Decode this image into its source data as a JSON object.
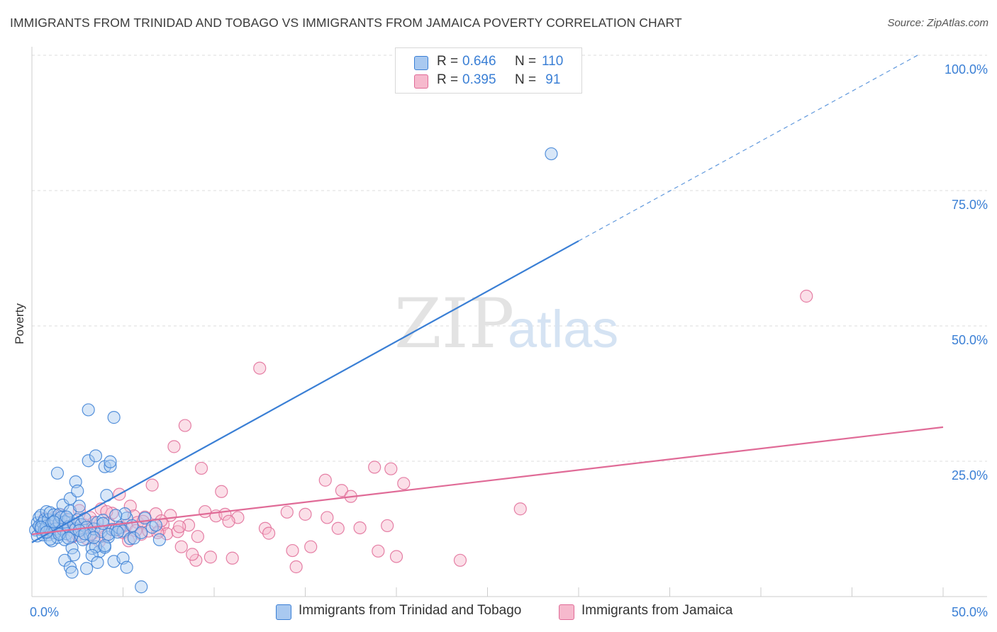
{
  "title": "IMMIGRANTS FROM TRINIDAD AND TOBAGO VS IMMIGRANTS FROM JAMAICA POVERTY CORRELATION CHART",
  "source": "Source: ZipAtlas.com",
  "watermark": {
    "zip": "ZIP",
    "atlas": "atlas"
  },
  "colors": {
    "blue": "#3a7fd5",
    "blue_fill": "#a9c9f0",
    "pink": "#e06b97",
    "pink_fill": "#f6b9cd",
    "grid": "#dddddd",
    "axis_text": "#3a7fd5"
  },
  "legend": {
    "blue": {
      "r_label": "R = ",
      "r_value": "0.646",
      "n_label": "N = ",
      "n_value": "110"
    },
    "pink": {
      "r_label": "R = ",
      "r_value": "0.395",
      "n_label": "N = ",
      "n_value": " 91"
    }
  },
  "bottom_legend": {
    "blue_label": "Immigrants from Trinidad and Tobago",
    "pink_label": "Immigrants from Jamaica"
  },
  "chart_data": {
    "type": "scatter",
    "title": "IMMIGRANTS FROM TRINIDAD AND TOBAGO VS IMMIGRANTS FROM JAMAICA POVERTY CORRELATION CHART",
    "xlabel": "",
    "ylabel": "Poverty",
    "xlim": [
      0,
      50
    ],
    "ylim": [
      0,
      100
    ],
    "x_tick_labels": [
      "0.0%",
      "50.0%"
    ],
    "y_ticks": [
      25,
      50,
      75,
      100
    ],
    "y_tick_labels": [
      "25.0%",
      "50.0%",
      "75.0%",
      "100.0%"
    ],
    "grid": true,
    "series": [
      {
        "name": "Immigrants from Trinidad and Tobago",
        "color": "blue",
        "R": 0.646,
        "N": 110,
        "trend": {
          "x0": 0,
          "y0": 10.0,
          "x1": 30,
          "y1": 65.7,
          "dashed_to_x": 48.6,
          "dashed_to_y": 100
        },
        "points": [
          [
            0.2,
            12.3
          ],
          [
            0.3,
            13.6
          ],
          [
            0.3,
            11.2
          ],
          [
            0.4,
            14.6
          ],
          [
            0.4,
            13.0
          ],
          [
            0.5,
            12.4
          ],
          [
            0.5,
            15.0
          ],
          [
            0.6,
            11.4
          ],
          [
            0.6,
            13.6
          ],
          [
            0.7,
            14.2
          ],
          [
            0.7,
            12.4
          ],
          [
            0.8,
            15.7
          ],
          [
            0.8,
            13.0
          ],
          [
            0.9,
            11.4
          ],
          [
            0.9,
            14.2
          ],
          [
            1.0,
            15.5
          ],
          [
            1.0,
            12.3
          ],
          [
            1.1,
            10.3
          ],
          [
            1.1,
            13.6
          ],
          [
            1.2,
            15.1
          ],
          [
            1.2,
            11.8
          ],
          [
            1.3,
            14.1
          ],
          [
            1.3,
            12.5
          ],
          [
            1.4,
            22.8
          ],
          [
            1.4,
            10.9
          ],
          [
            1.5,
            13.7
          ],
          [
            1.5,
            15.2
          ],
          [
            1.6,
            14.6
          ],
          [
            1.6,
            11.7
          ],
          [
            1.7,
            12.4
          ],
          [
            1.7,
            16.9
          ],
          [
            1.8,
            13.8
          ],
          [
            1.8,
            10.5
          ],
          [
            1.9,
            11.6
          ],
          [
            2.0,
            14.3
          ],
          [
            2.0,
            12.9
          ],
          [
            2.1,
            15.8
          ],
          [
            2.1,
            18.1
          ],
          [
            2.2,
            11.2
          ],
          [
            2.2,
            9.0
          ],
          [
            2.3,
            7.7
          ],
          [
            2.3,
            13.4
          ],
          [
            2.4,
            21.2
          ],
          [
            2.4,
            12.5
          ],
          [
            2.5,
            19.5
          ],
          [
            2.5,
            14.2
          ],
          [
            2.6,
            16.7
          ],
          [
            2.7,
            13.3
          ],
          [
            2.7,
            11.1
          ],
          [
            2.8,
            10.5
          ],
          [
            2.9,
            14.4
          ],
          [
            3.0,
            12.8
          ],
          [
            3.1,
            34.5
          ],
          [
            3.1,
            25.1
          ],
          [
            3.2,
            11.4
          ],
          [
            3.3,
            8.9
          ],
          [
            3.4,
            12.5
          ],
          [
            3.5,
            26.0
          ],
          [
            3.6,
            13.7
          ],
          [
            3.7,
            8.3
          ],
          [
            3.8,
            12.0
          ],
          [
            3.9,
            14.1
          ],
          [
            4.0,
            24.0
          ],
          [
            4.0,
            9.1
          ],
          [
            4.1,
            18.7
          ],
          [
            4.2,
            11.0
          ],
          [
            4.3,
            24.1
          ],
          [
            4.3,
            24.9
          ],
          [
            4.4,
            12.4
          ],
          [
            4.5,
            33.1
          ],
          [
            4.6,
            12.3
          ],
          [
            4.8,
            12.7
          ],
          [
            5.0,
            12.1
          ],
          [
            5.2,
            14.5
          ],
          [
            5.4,
            10.7
          ],
          [
            5.6,
            10.8
          ],
          [
            6.0,
            11.8
          ],
          [
            6.2,
            14.5
          ],
          [
            6.6,
            12.8
          ],
          [
            6.8,
            13.2
          ],
          [
            7.0,
            10.5
          ],
          [
            0.5,
            12.8
          ],
          [
            1.0,
            10.6
          ],
          [
            1.5,
            11.5
          ],
          [
            2.0,
            10.8
          ],
          [
            3.5,
            9.2
          ],
          [
            4.0,
            9.4
          ],
          [
            4.2,
            11.5
          ],
          [
            1.8,
            6.7
          ],
          [
            2.1,
            5.4
          ],
          [
            2.2,
            4.5
          ],
          [
            3.0,
            5.2
          ],
          [
            3.3,
            7.6
          ],
          [
            3.6,
            6.3
          ],
          [
            4.5,
            6.5
          ],
          [
            5.0,
            7.1
          ],
          [
            5.5,
            13.1
          ],
          [
            6.0,
            1.8
          ],
          [
            5.2,
            5.4
          ],
          [
            28.5,
            81.8
          ],
          [
            1.2,
            13.8
          ],
          [
            2.6,
            12.2
          ],
          [
            3.9,
            13.5
          ],
          [
            4.7,
            11.9
          ],
          [
            5.1,
            15.3
          ],
          [
            0.8,
            11.9
          ],
          [
            1.9,
            14.7
          ],
          [
            2.9,
            11.6
          ],
          [
            3.4,
            10.9
          ],
          [
            4.6,
            15.0
          ]
        ]
      },
      {
        "name": "Immigrants from Jamaica",
        "color": "pink",
        "R": 0.395,
        "N": 91,
        "trend": {
          "x0": 0,
          "y0": 11.5,
          "x1": 50,
          "y1": 31.3
        },
        "points": [
          [
            0.5,
            12.5
          ],
          [
            0.8,
            13.8
          ],
          [
            1.0,
            11.8
          ],
          [
            1.2,
            14.6
          ],
          [
            1.4,
            13.1
          ],
          [
            1.6,
            15.1
          ],
          [
            1.8,
            12.3
          ],
          [
            2.0,
            14.1
          ],
          [
            2.2,
            11.0
          ],
          [
            2.4,
            13.4
          ],
          [
            2.6,
            15.9
          ],
          [
            2.8,
            12.6
          ],
          [
            3.0,
            10.7
          ],
          [
            3.2,
            14.6
          ],
          [
            3.4,
            13.7
          ],
          [
            3.6,
            12.5
          ],
          [
            3.8,
            16.2
          ],
          [
            4.0,
            11.1
          ],
          [
            4.2,
            13.6
          ],
          [
            4.4,
            15.4
          ],
          [
            4.6,
            12.3
          ],
          [
            4.8,
            18.9
          ],
          [
            5.0,
            11.8
          ],
          [
            5.2,
            13.2
          ],
          [
            5.4,
            16.7
          ],
          [
            5.6,
            14.9
          ],
          [
            5.8,
            13.7
          ],
          [
            6.0,
            11.5
          ],
          [
            6.2,
            14.7
          ],
          [
            6.4,
            12.1
          ],
          [
            6.6,
            20.6
          ],
          [
            6.8,
            15.3
          ],
          [
            7.0,
            12.2
          ],
          [
            7.2,
            13.3
          ],
          [
            7.4,
            11.6
          ],
          [
            7.6,
            15.0
          ],
          [
            7.8,
            27.7
          ],
          [
            8.0,
            12.0
          ],
          [
            8.2,
            9.2
          ],
          [
            8.4,
            31.6
          ],
          [
            8.6,
            13.2
          ],
          [
            9.0,
            6.7
          ],
          [
            9.3,
            23.7
          ],
          [
            9.5,
            15.7
          ],
          [
            9.8,
            7.3
          ],
          [
            10.1,
            14.9
          ],
          [
            10.4,
            19.4
          ],
          [
            10.6,
            15.2
          ],
          [
            11.0,
            7.1
          ],
          [
            11.3,
            14.6
          ],
          [
            12.5,
            42.2
          ],
          [
            12.8,
            12.6
          ],
          [
            13.0,
            11.7
          ],
          [
            14.0,
            15.6
          ],
          [
            14.3,
            8.5
          ],
          [
            14.5,
            5.5
          ],
          [
            15.0,
            15.2
          ],
          [
            15.3,
            9.2
          ],
          [
            16.1,
            21.5
          ],
          [
            16.2,
            14.6
          ],
          [
            16.8,
            12.6
          ],
          [
            17.0,
            19.6
          ],
          [
            17.5,
            18.5
          ],
          [
            18.0,
            12.7
          ],
          [
            19.0,
            8.4
          ],
          [
            19.5,
            13.1
          ],
          [
            20.0,
            7.4
          ],
          [
            18.8,
            23.9
          ],
          [
            19.7,
            23.6
          ],
          [
            20.4,
            20.9
          ],
          [
            23.5,
            6.7
          ],
          [
            26.8,
            16.2
          ],
          [
            42.5,
            55.5
          ],
          [
            1.3,
            12.4
          ],
          [
            2.5,
            11.4
          ],
          [
            3.7,
            10.2
          ],
          [
            4.9,
            12.8
          ],
          [
            6.1,
            13.9
          ],
          [
            7.1,
            14.0
          ],
          [
            8.1,
            12.9
          ],
          [
            9.1,
            11.1
          ],
          [
            0.7,
            14.4
          ],
          [
            1.7,
            12.9
          ],
          [
            2.9,
            13.2
          ],
          [
            3.3,
            11.6
          ],
          [
            5.3,
            10.3
          ],
          [
            6.9,
            11.8
          ],
          [
            8.8,
            7.8
          ],
          [
            10.8,
            13.9
          ],
          [
            4.1,
            15.7
          ],
          [
            5.7,
            12.2
          ]
        ]
      }
    ]
  }
}
